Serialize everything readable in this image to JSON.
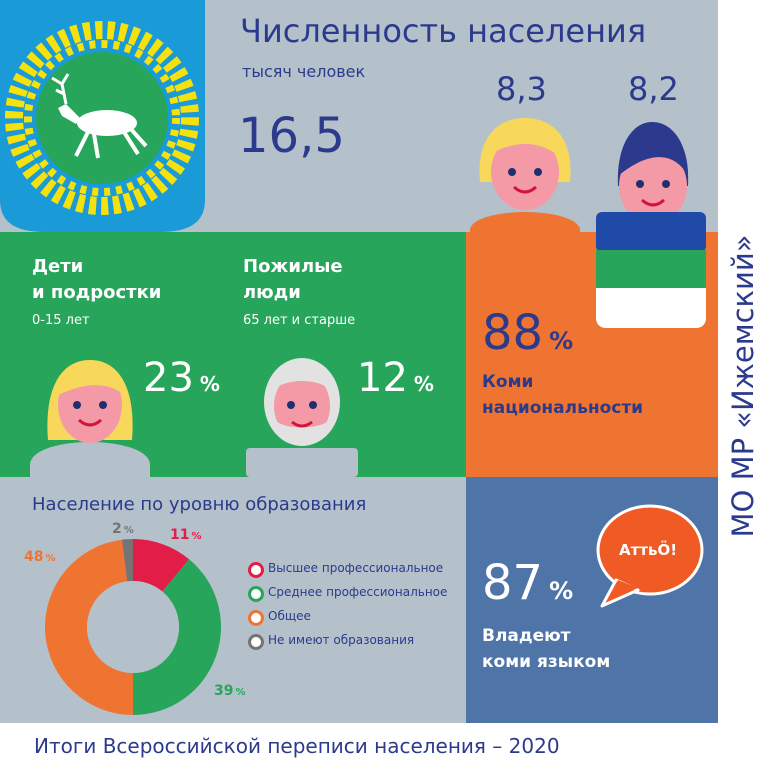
{
  "colors": {
    "grey": "#b4c1cb",
    "green": "#27a55b",
    "orange": "#f07431",
    "blue": "#4f74a8",
    "navy": "#2b3a8c",
    "red": "#e21d48",
    "dark_grey": "#747474"
  },
  "header": {
    "title": "Численность населения",
    "unit": "тысяч человек",
    "total": "16,5",
    "female": "8,3",
    "male": "8,2"
  },
  "children": {
    "title_line1": "Дети",
    "title_line2": "и подростки",
    "age": "0-15 лет",
    "value": "23",
    "pct": "%"
  },
  "elderly": {
    "title_line1": "Пожилые",
    "title_line2": "люди",
    "age": "65 лет и старше",
    "value": "12",
    "pct": "%"
  },
  "komi_nationality": {
    "value": "88",
    "pct": "%",
    "label_line1": "Коми",
    "label_line2": "национальности"
  },
  "education": {
    "title": "Население по уровню образования",
    "legend": [
      {
        "label": "Высшее профессиональное",
        "color": "#e21d48",
        "icon": "red-dot-icon"
      },
      {
        "label": "Среднее профессиональное",
        "color": "#27a55b",
        "icon": "green-dot-icon"
      },
      {
        "label": "Общее",
        "color": "#f07431",
        "icon": "orange-dot-icon"
      },
      {
        "label": "Не имеют образования",
        "color": "#747474",
        "icon": "grey-dot-icon"
      }
    ]
  },
  "chart_data": {
    "type": "pie",
    "donut": true,
    "title": "Население по уровню образования",
    "categories": [
      "Высшее профессиональное",
      "Среднее профессиональное",
      "Общее",
      "Не имеют образования"
    ],
    "values": [
      11,
      39,
      48,
      2
    ],
    "labels": [
      "11",
      "39",
      "48",
      "2"
    ],
    "unit": "%",
    "colors": [
      "#e21d48",
      "#27a55b",
      "#f07431",
      "#747474"
    ],
    "legend": "right"
  },
  "komi_language": {
    "value": "87",
    "pct": "%",
    "label_line1": "Владеют",
    "label_line2": "коми языком",
    "bubble": "АттьÖ!"
  },
  "side_title": "МО МР «Ижемский»",
  "footer": "Итоги Всероссийской переписи населения – 2020"
}
